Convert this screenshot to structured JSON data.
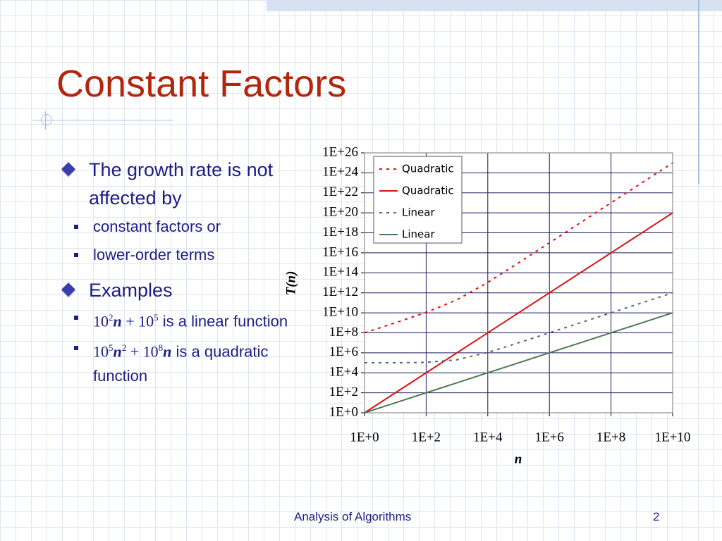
{
  "slide": {
    "title": "Constant Factors",
    "bullets": [
      {
        "text": "The growth rate is not affected by",
        "sub": [
          {
            "runs": [
              "constant factors or"
            ]
          },
          {
            "runs": [
              "lower-order terms"
            ]
          }
        ]
      },
      {
        "text": "Examples",
        "sub": [
          {
            "runs": [
              "10",
              "2",
              "n",
              " + 10",
              "5",
              " is a linear function"
            ]
          },
          {
            "runs": [
              "10",
              "5",
              "n",
              "2",
              " + 10",
              "8",
              "n",
              " is a quadratic function"
            ]
          }
        ]
      }
    ],
    "footer": "Analysis of Algorithms",
    "page_number": "2"
  },
  "chart_data": {
    "type": "line",
    "x_label": "n",
    "y_label": "T(n)",
    "x_scale": "log",
    "y_scale": "log",
    "grid": true,
    "legend": "top-left",
    "x": [
      1,
      10,
      100,
      1000,
      10000,
      100000,
      1000000,
      10000000,
      100000000,
      1000000000,
      10000000000
    ],
    "series": [
      {
        "name": "Quadratic",
        "color": "#e01010",
        "dash": "dashed",
        "values": [
          100100000,
          1010000000,
          11000000000,
          200000000000,
          11000000000000.0,
          1010000000000000.0,
          1.001e+17,
          1.0001e+19,
          1.00001e+21,
          1e+23,
          1e+25
        ]
      },
      {
        "name": "Quadratic",
        "color": "#e01010",
        "dash": "solid",
        "values": [
          1,
          100,
          10000,
          1000000,
          100000000,
          10000000000,
          1000000000000.0,
          100000000000000.0,
          1e+16,
          1e+18,
          1e+20
        ]
      },
      {
        "name": "Linear",
        "color": "#5a6a5a",
        "dash": "dashed",
        "values": [
          100100,
          101000,
          110000,
          200000,
          1100000,
          10100000,
          100100000,
          1000100000,
          10000100000,
          100000000000,
          1000000000000.0
        ]
      },
      {
        "name": "Linear",
        "color": "#4f7a4f",
        "dash": "solid",
        "values": [
          1,
          10,
          100,
          1000,
          10000,
          100000,
          1000000,
          10000000,
          100000000,
          1000000000,
          10000000000
        ]
      }
    ],
    "xlim": [
      1,
      10000000000
    ],
    "xticks": [
      {
        "value": 1,
        "label": "1E+0"
      },
      {
        "value": 100,
        "label": "1E+2"
      },
      {
        "value": 10000,
        "label": "1E+4"
      },
      {
        "value": 1000000,
        "label": "1E+6"
      },
      {
        "value": 100000000,
        "label": "1E+8"
      },
      {
        "value": 10000000000,
        "label": "1E+10"
      }
    ],
    "ylim": [
      1,
      1e+26
    ],
    "yticks": [
      {
        "value": 1,
        "label": "1E+0"
      },
      {
        "value": 100,
        "label": "1E+2"
      },
      {
        "value": 10000,
        "label": "1E+4"
      },
      {
        "value": 1000000,
        "label": "1E+6"
      },
      {
        "value": 100000000,
        "label": "1E+8"
      },
      {
        "value": 10000000000,
        "label": "1E+10"
      },
      {
        "value": 1000000000000.0,
        "label": "1E+12"
      },
      {
        "value": 100000000000000.0,
        "label": "1E+14"
      },
      {
        "value": 1e+16,
        "label": "1E+16"
      },
      {
        "value": 1e+18,
        "label": "1E+18"
      },
      {
        "value": 1e+20,
        "label": "1E+20"
      },
      {
        "value": 1e+22,
        "label": "1E+22"
      },
      {
        "value": 1e+24,
        "label": "1E+24"
      },
      {
        "value": 1e+26,
        "label": "1E+26"
      }
    ]
  }
}
